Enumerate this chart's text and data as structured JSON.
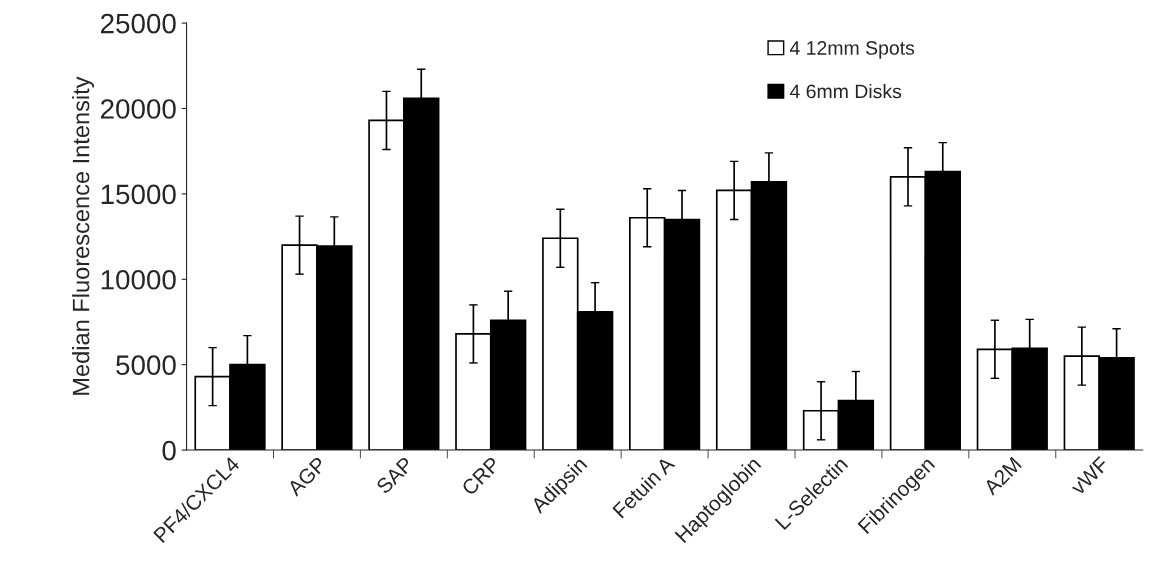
{
  "chart_data": {
    "type": "bar",
    "ylabel": "Median Fluorescence Intensity",
    "categories": [
      "PF4/CXCL4",
      "AGP",
      "SAP",
      "CRP",
      "Adipsin",
      "Fetuin A",
      "Haptoglobin",
      "L-Selectin",
      "Fibrinogen",
      "A2M",
      "vWF"
    ],
    "series": [
      {
        "name": "4 12mm Spots",
        "color": "#ffffff",
        "values": [
          4300,
          12000,
          19300,
          6800,
          12400,
          13600,
          15200,
          2300,
          16000,
          5900,
          5500
        ],
        "errors": [
          1700,
          1700,
          1700,
          1700,
          1700,
          1700,
          1700,
          1700,
          1700,
          1700,
          1700
        ]
      },
      {
        "name": "4 6mm Disks",
        "color": "#000000",
        "values": [
          5000,
          11950,
          20600,
          7600,
          8100,
          13500,
          15700,
          2900,
          16300,
          5950,
          5400
        ],
        "errors": [
          1700,
          1700,
          1700,
          1700,
          1700,
          1700,
          1700,
          1700,
          1700,
          1700,
          1700
        ]
      }
    ],
    "ylim": [
      0,
      25000
    ],
    "yticks": [
      0,
      5000,
      10000,
      15000,
      20000,
      25000
    ],
    "grid": false,
    "legend": "top right"
  }
}
